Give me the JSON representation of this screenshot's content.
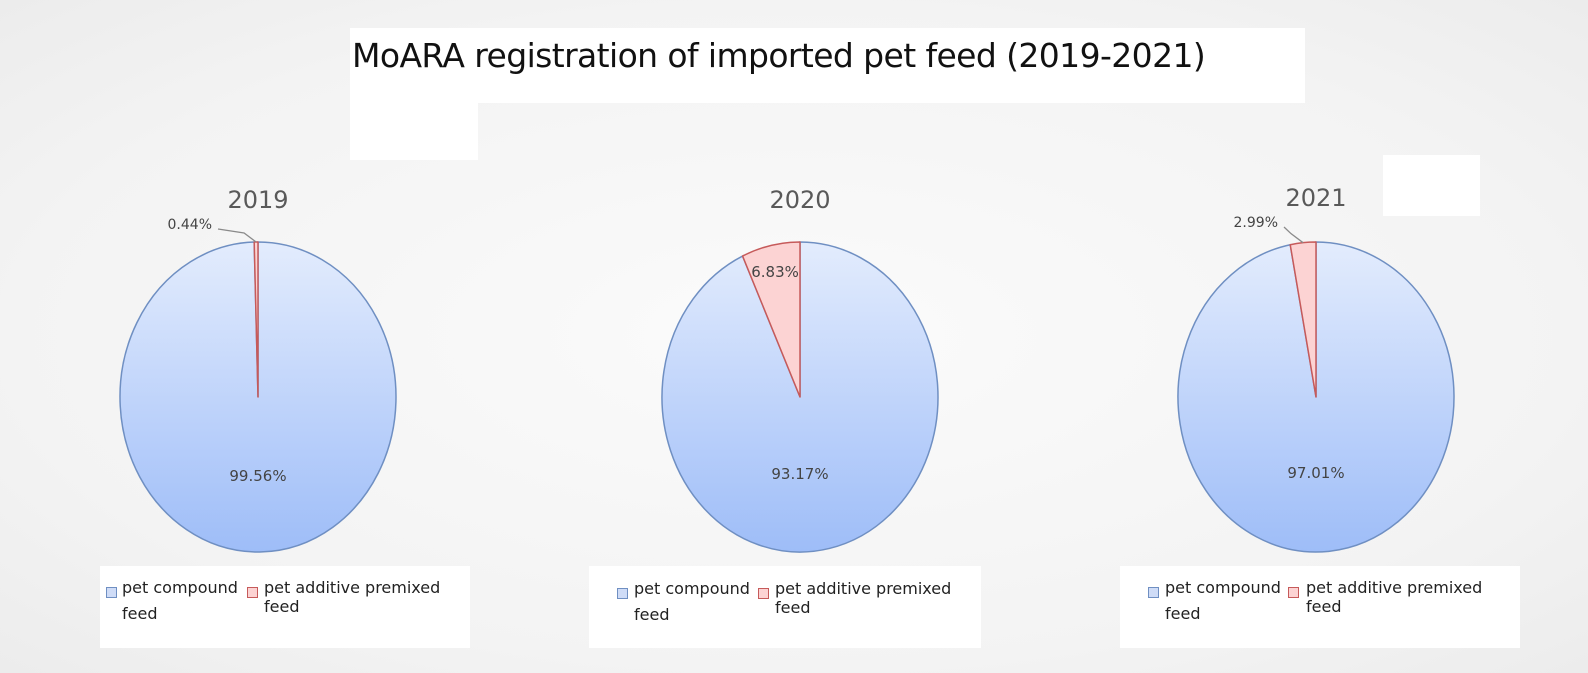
{
  "title": "MoARA  registration of imported pet feed (2019-2021)",
  "colors": {
    "compound_fill_top": "#e3ecfd",
    "compound_fill_bottom": "#9ebdf8",
    "compound_stroke": "#6f8fc2",
    "additive_fill": "#fcd3d3",
    "additive_stroke": "#c65a5a"
  },
  "legend": {
    "compound_label_line1": "pet compound",
    "compound_label_line2": "feed",
    "additive_label": "pet additive premixed feed"
  },
  "chart_data": [
    {
      "type": "pie",
      "title": "2019",
      "categories": [
        "pet compound feed",
        "pet additive premixed feed"
      ],
      "values": [
        99.56,
        0.44
      ],
      "labels": [
        "99.56%",
        "0.44%"
      ]
    },
    {
      "type": "pie",
      "title": "2020",
      "categories": [
        "pet compound feed",
        "pet additive premixed feed"
      ],
      "values": [
        93.17,
        6.83
      ],
      "labels": [
        "93.17%",
        "6.83%"
      ]
    },
    {
      "type": "pie",
      "title": "2021",
      "categories": [
        "pet compound feed",
        "pet additive premixed feed"
      ],
      "values": [
        97.01,
        2.99
      ],
      "labels": [
        "97.01%",
        "2.99%"
      ]
    }
  ]
}
